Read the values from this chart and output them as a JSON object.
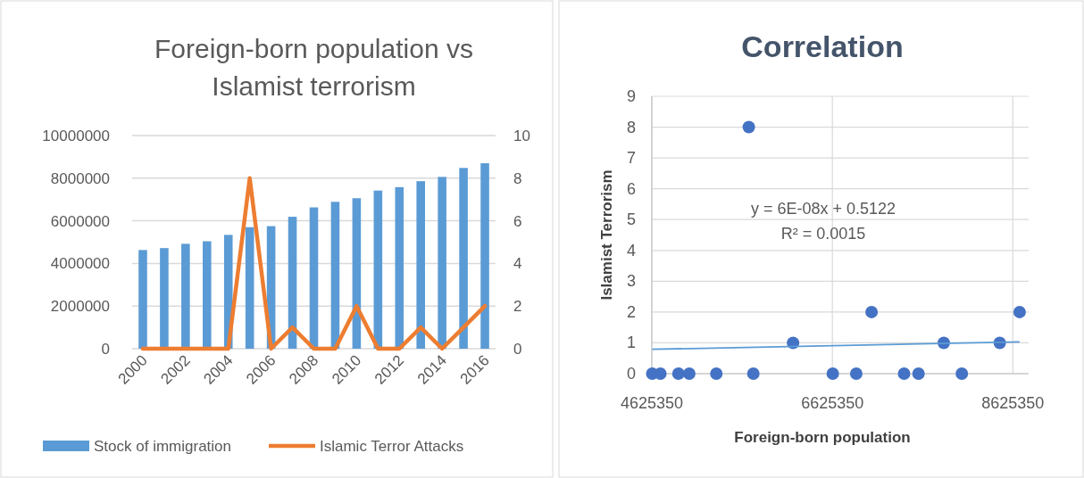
{
  "chart_data": [
    {
      "type": "bar",
      "title": "Foreign-born population vs Islamist terrorism",
      "categories": [
        "2000",
        null,
        "2002",
        null,
        "2004",
        null,
        "2006",
        null,
        "2008",
        null,
        "2010",
        null,
        "2012",
        null,
        "2014",
        null,
        "2016"
      ],
      "series": [
        {
          "name": "Stock of immigration",
          "color": "#5b9bd5",
          "values": [
            4630000,
            4720000,
            4920000,
            5040000,
            5340000,
            5700000,
            5750000,
            6190000,
            6630000,
            6890000,
            7060000,
            7420000,
            7580000,
            7860000,
            8060000,
            8480000,
            8700000
          ]
        },
        {
          "name": "Islamic Terror Attacks",
          "type": "line",
          "axis": "y2",
          "color": "#ed7d31",
          "values": [
            0,
            0,
            0,
            0,
            0,
            8,
            0,
            1,
            0,
            0,
            2,
            0,
            0,
            1,
            0,
            1,
            2
          ]
        }
      ],
      "ylim": [
        0,
        10000000
      ],
      "yticks": [
        0,
        2000000,
        4000000,
        6000000,
        8000000,
        10000000
      ],
      "y2lim": [
        0,
        10
      ],
      "y2ticks": [
        0,
        2,
        4,
        6,
        8,
        10
      ],
      "grid": "y",
      "legend": "bottom"
    },
    {
      "type": "scatter",
      "title": "Correlation",
      "xlabel": "Foreign-born population",
      "ylabel": "Islamist Terrorism",
      "series": [
        {
          "color": "#4472c4",
          "marker": "circle",
          "x": [
            4630000,
            4720000,
            4920000,
            5040000,
            5340000,
            5700000,
            5750000,
            6190000,
            6630000,
            6890000,
            7060000,
            7420000,
            7580000,
            7860000,
            8060000,
            8480000,
            8700000
          ],
          "values": [
            0,
            0,
            0,
            0,
            0,
            8,
            0,
            1,
            0,
            0,
            2,
            0,
            0,
            1,
            0,
            1,
            2
          ]
        },
        {
          "type": "line",
          "color": "#5b9bd5",
          "x": [
            4630000,
            8700000
          ],
          "values": [
            0.79,
            1.03
          ]
        }
      ],
      "xlim": [
        4625350,
        8800000
      ],
      "xticks": [
        4625350,
        6625350,
        8625350
      ],
      "ylim": [
        0,
        9
      ],
      "yticks": [
        0,
        1,
        2,
        3,
        4,
        5,
        6,
        7,
        8,
        9
      ],
      "grid": true,
      "annotations": [
        "y = 6E-08x + 0.5122",
        "R² = 0.0015"
      ]
    }
  ]
}
